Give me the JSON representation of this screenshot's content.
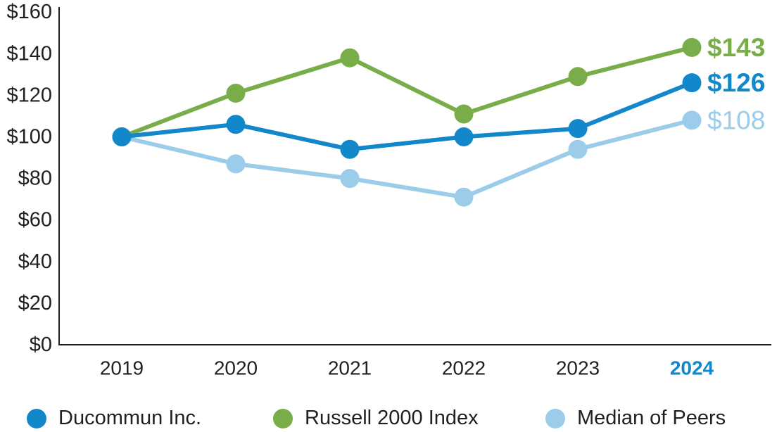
{
  "colors": {
    "ducommun": "#1287c9",
    "russell": "#78ad4a",
    "peers": "#9bcce9",
    "axis": "#231f20",
    "year_highlight": "#1287c9"
  },
  "chart_data": {
    "type": "line",
    "categories": [
      "2019",
      "2020",
      "2021",
      "2022",
      "2023",
      "2024"
    ],
    "x_highlight": "2024",
    "series": [
      {
        "name": "Ducommun Inc.",
        "color_key": "ducommun",
        "values": [
          100,
          106,
          94,
          100,
          104,
          126
        ],
        "end_label": "$126",
        "end_label_bold": true
      },
      {
        "name": "Russell 2000 Index",
        "color_key": "russell",
        "values": [
          100,
          121,
          138,
          111,
          129,
          143
        ],
        "end_label": "$143",
        "end_label_bold": true
      },
      {
        "name": "Median of Peers",
        "color_key": "peers",
        "values": [
          100,
          87,
          80,
          71,
          94,
          108
        ],
        "end_label": "$108",
        "end_label_bold": false
      }
    ],
    "y_ticks": [
      {
        "value": 0,
        "label": "$0"
      },
      {
        "value": 20,
        "label": "$20"
      },
      {
        "value": 40,
        "label": "$40"
      },
      {
        "value": 60,
        "label": "$60"
      },
      {
        "value": 80,
        "label": "$80"
      },
      {
        "value": 100,
        "label": "$100"
      },
      {
        "value": 120,
        "label": "$120"
      },
      {
        "value": 140,
        "label": "$140"
      },
      {
        "value": 160,
        "label": "$160"
      }
    ],
    "ylim": [
      0,
      160
    ],
    "grid": false,
    "legend_position": "bottom"
  },
  "legend": {
    "items": [
      {
        "label": "Ducommun Inc.",
        "color_key": "ducommun"
      },
      {
        "label": "Russell 2000 Index",
        "color_key": "russell"
      },
      {
        "label": "Median of Peers",
        "color_key": "peers"
      }
    ]
  }
}
